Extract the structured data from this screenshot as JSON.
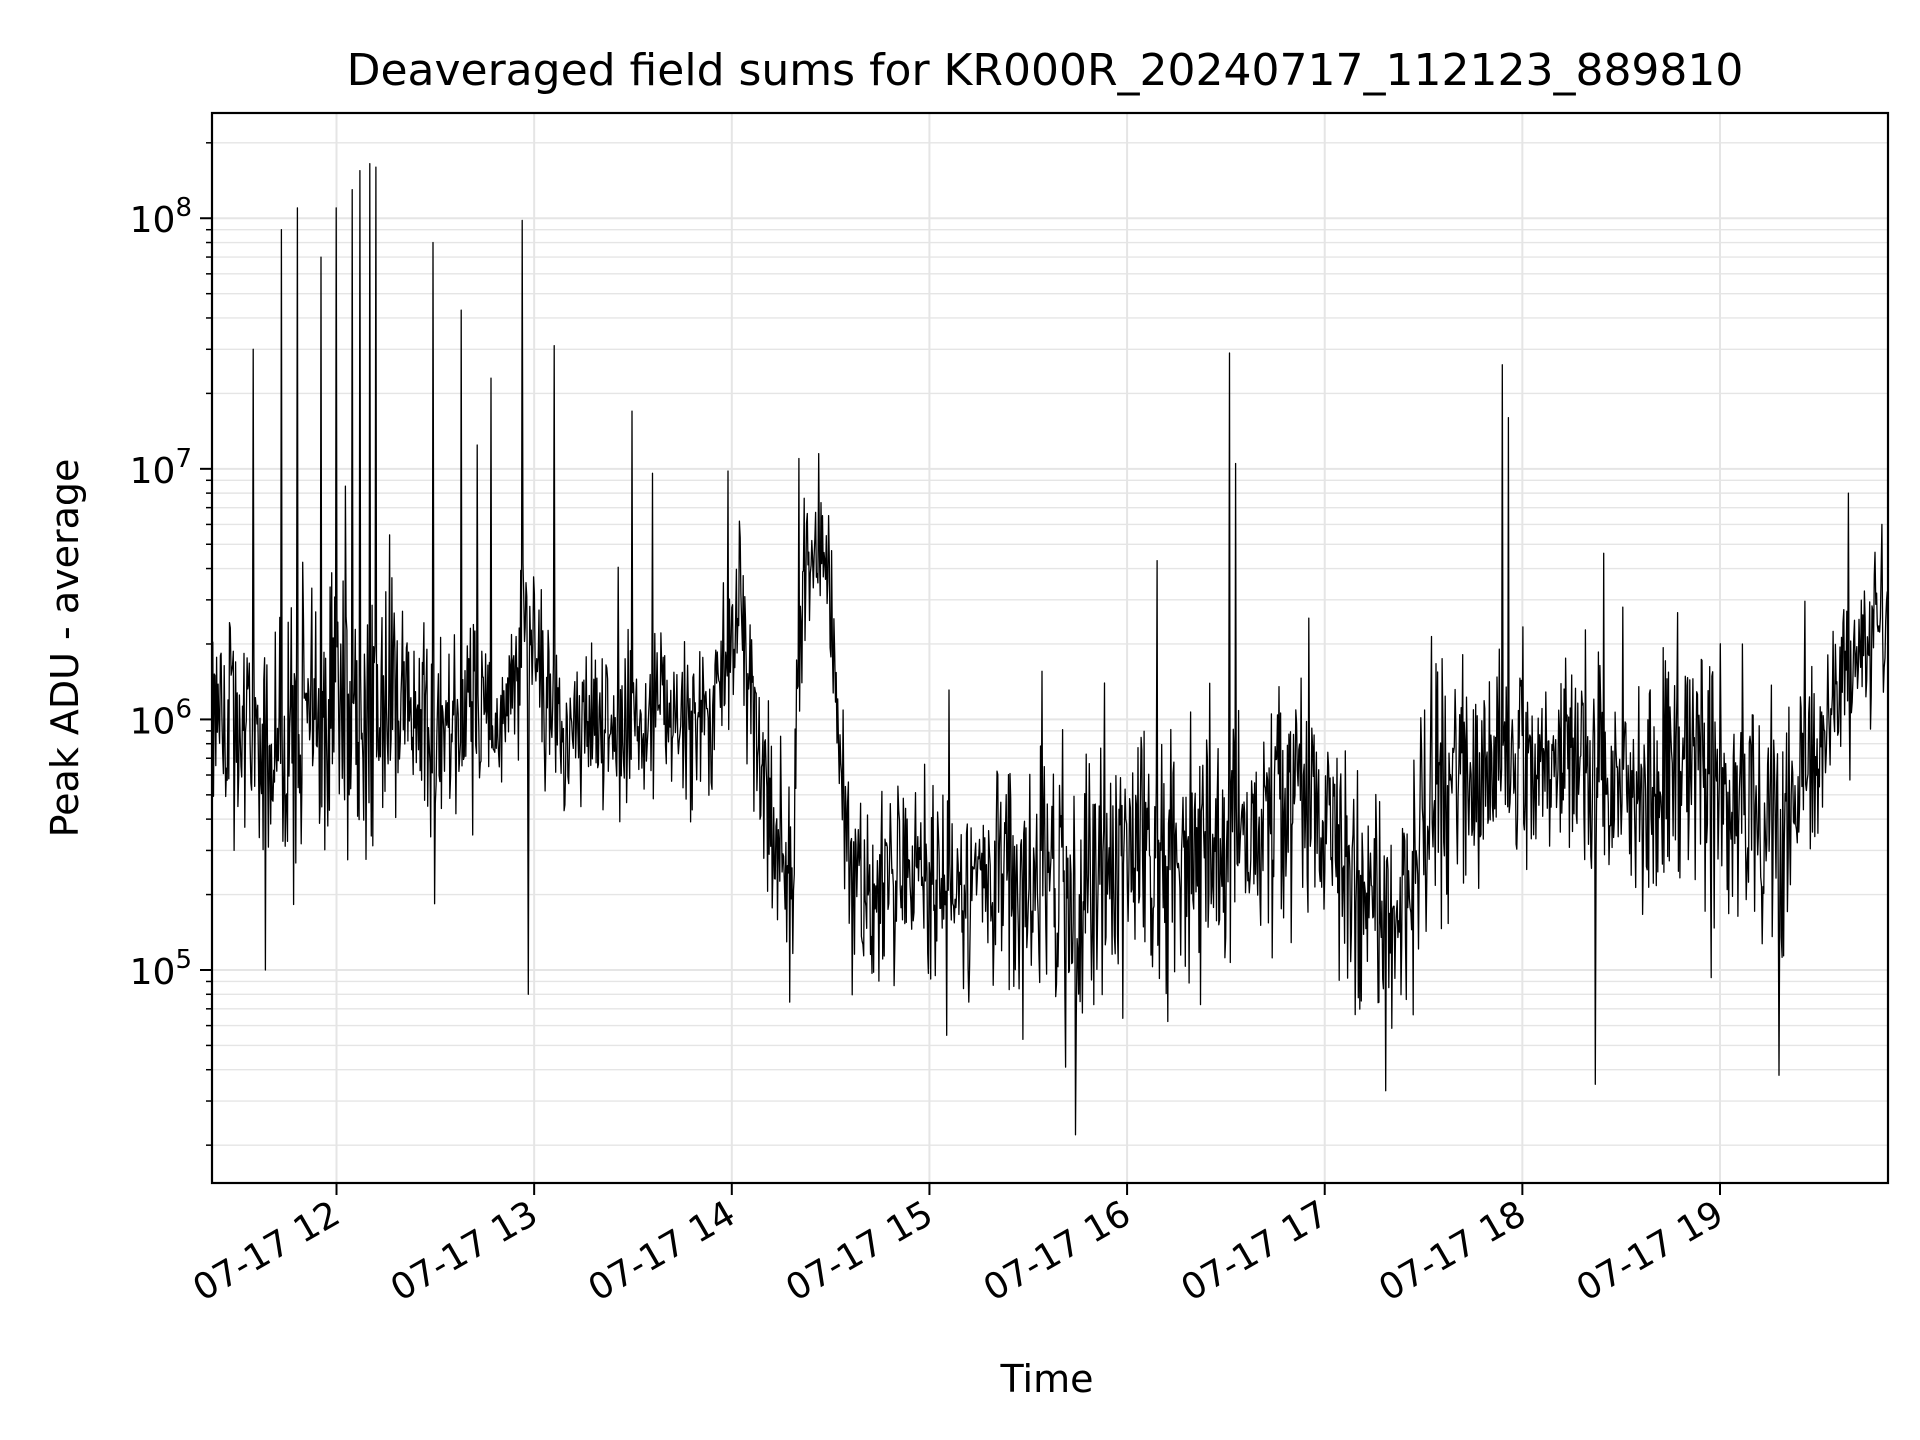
{
  "chart_data": {
    "type": "line",
    "title": "Deaveraged field sums for KR000R_20240717_112123_889810",
    "xlabel": "Time",
    "ylabel": "Peak ADU - average",
    "x_unit": "hours",
    "xlim": [
      11.37,
      19.85
    ],
    "ylim_log10": [
      4.15,
      8.42
    ],
    "y_scale": "log",
    "grid": true,
    "line_color": "#000000",
    "grid_color": "#e5e5e5",
    "x_ticks": [
      {
        "value": 12,
        "label": "07-17 12"
      },
      {
        "value": 13,
        "label": "07-17 13"
      },
      {
        "value": 14,
        "label": "07-17 14"
      },
      {
        "value": 15,
        "label": "07-17 15"
      },
      {
        "value": 16,
        "label": "07-17 16"
      },
      {
        "value": 17,
        "label": "07-17 17"
      },
      {
        "value": 18,
        "label": "07-17 18"
      },
      {
        "value": 19,
        "label": "07-17 19"
      }
    ],
    "y_ticks": [
      {
        "value": 100000,
        "base": "10",
        "exp": "5"
      },
      {
        "value": 1000000,
        "base": "10",
        "exp": "6"
      },
      {
        "value": 10000000,
        "base": "10",
        "exp": "7"
      },
      {
        "value": 100000000,
        "base": "10",
        "exp": "8"
      }
    ],
    "x_time_hours": [
      11.37,
      11.55,
      11.7,
      11.85,
      12.0,
      12.15,
      12.3,
      12.45,
      12.6,
      12.75,
      12.85,
      12.95,
      13.1,
      13.3,
      13.5,
      13.6,
      13.75,
      13.9,
      13.97,
      14.02,
      14.08,
      14.15,
      14.3,
      14.35,
      14.42,
      14.48,
      14.6,
      14.8,
      15.0,
      15.2,
      15.4,
      15.6,
      15.75,
      15.9,
      16.1,
      16.3,
      16.5,
      16.7,
      16.9,
      17.1,
      17.3,
      17.45,
      17.6,
      17.8,
      18.0,
      18.2,
      18.4,
      18.6,
      18.8,
      19.0,
      19.2,
      19.35,
      19.5,
      19.6,
      19.7,
      19.85
    ],
    "y_typical_log10": [
      6.1,
      5.95,
      5.9,
      5.95,
      6.1,
      5.95,
      6.1,
      6.0,
      6.0,
      6.05,
      6.0,
      6.35,
      5.95,
      5.95,
      5.95,
      6.05,
      6.0,
      6.0,
      6.15,
      6.55,
      6.3,
      5.7,
      5.3,
      6.5,
      6.65,
      6.7,
      5.3,
      5.4,
      5.4,
      5.35,
      5.35,
      5.35,
      5.2,
      5.45,
      5.5,
      5.45,
      5.55,
      5.6,
      5.65,
      5.5,
      5.15,
      5.35,
      5.75,
      5.8,
      5.85,
      5.85,
      5.8,
      5.7,
      5.8,
      5.65,
      5.55,
      5.6,
      5.9,
      6.2,
      6.3,
      6.35
    ],
    "y_spread_log10": [
      0.35,
      0.4,
      0.45,
      0.5,
      0.5,
      0.45,
      0.4,
      0.4,
      0.35,
      0.3,
      0.3,
      0.3,
      0.3,
      0.3,
      0.3,
      0.3,
      0.3,
      0.3,
      0.3,
      0.3,
      0.35,
      0.4,
      0.35,
      0.3,
      0.2,
      0.2,
      0.35,
      0.35,
      0.35,
      0.35,
      0.4,
      0.45,
      0.5,
      0.5,
      0.45,
      0.45,
      0.45,
      0.45,
      0.4,
      0.4,
      0.4,
      0.45,
      0.45,
      0.45,
      0.4,
      0.4,
      0.4,
      0.45,
      0.45,
      0.45,
      0.45,
      0.45,
      0.35,
      0.3,
      0.3,
      0.3
    ],
    "spikes": [
      {
        "x": 11.48,
        "y": 300000
      },
      {
        "x": 11.58,
        "y": 30000000
      },
      {
        "x": 11.64,
        "y": 100000
      },
      {
        "x": 11.72,
        "y": 90000000
      },
      {
        "x": 11.8,
        "y": 110000000
      },
      {
        "x": 11.92,
        "y": 70000000
      },
      {
        "x": 12.0,
        "y": 110000000
      },
      {
        "x": 12.08,
        "y": 130000000
      },
      {
        "x": 12.12,
        "y": 155000000
      },
      {
        "x": 12.17,
        "y": 165000000
      },
      {
        "x": 12.2,
        "y": 160000000
      },
      {
        "x": 12.49,
        "y": 80000000
      },
      {
        "x": 12.63,
        "y": 43000000
      },
      {
        "x": 12.78,
        "y": 23000000
      },
      {
        "x": 12.94,
        "y": 98000000
      },
      {
        "x": 12.97,
        "y": 80000
      },
      {
        "x": 13.1,
        "y": 31000000
      },
      {
        "x": 13.6,
        "y": 9600000
      },
      {
        "x": 13.98,
        "y": 9800000
      },
      {
        "x": 14.34,
        "y": 11000000
      },
      {
        "x": 14.44,
        "y": 11500000
      },
      {
        "x": 15.74,
        "y": 22000
      },
      {
        "x": 16.15,
        "y": 4300000
      },
      {
        "x": 16.52,
        "y": 29000000
      },
      {
        "x": 16.55,
        "y": 10500000
      },
      {
        "x": 17.31,
        "y": 33000
      },
      {
        "x": 17.9,
        "y": 26000000
      },
      {
        "x": 17.93,
        "y": 16000000
      },
      {
        "x": 18.37,
        "y": 35000
      },
      {
        "x": 19.3,
        "y": 38000
      },
      {
        "x": 19.65,
        "y": 8000000
      },
      {
        "x": 19.82,
        "y": 6000000
      }
    ]
  }
}
